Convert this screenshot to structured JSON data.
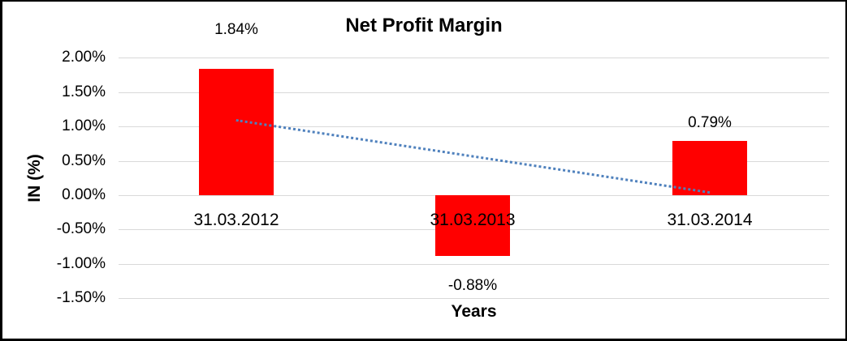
{
  "chart_data": {
    "type": "bar",
    "title": "Net Profit Margin",
    "categories": [
      "31.03.2012",
      "31.03.2013",
      "31.03.2014"
    ],
    "values": [
      1.84,
      -0.88,
      0.79
    ],
    "value_labels": [
      "1.84%",
      "-0.88%",
      "0.79%"
    ],
    "xlabel": "Years",
    "ylabel": "IN (%)",
    "y_ticks": [
      2.0,
      1.5,
      1.0,
      0.5,
      0.0,
      -0.5,
      -1.0,
      -1.5
    ],
    "y_tick_labels": [
      "2.00%",
      "1.50%",
      "1.00%",
      "0.50%",
      "0.00%",
      "-0.50%",
      "-1.00%",
      "-1.50%"
    ],
    "ylim": [
      -1.5,
      2.0
    ],
    "grid": true,
    "legend": false,
    "bar_color": "#ff0000",
    "gridline_color": "#d9d9d9",
    "trendline": {
      "type": "linear",
      "style": "dotted",
      "color": "#4f81bd",
      "start_value": 1.11,
      "end_value": 0.06
    }
  }
}
